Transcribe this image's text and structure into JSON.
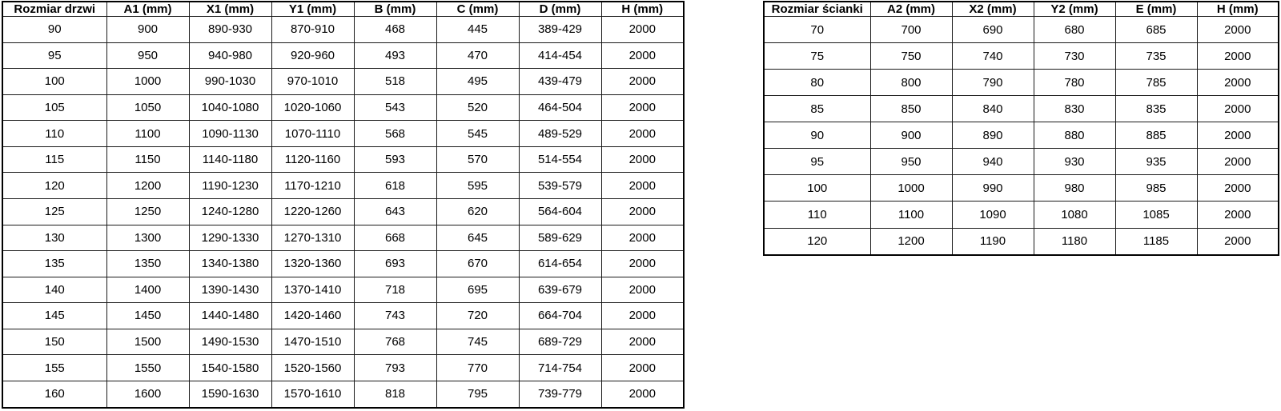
{
  "page": {
    "background": "#ffffff",
    "border_color": "#000000",
    "text_color": "#000000"
  },
  "door_table": {
    "headers": [
      "Rozmiar drzwi",
      "A1 (mm)",
      "X1 (mm)",
      "Y1 (mm)",
      "B (mm)",
      "C (mm)",
      "D (mm)",
      "H (mm)"
    ],
    "rows": [
      [
        "90",
        "900",
        "890-930",
        "870-910",
        "468",
        "445",
        "389-429",
        "2000"
      ],
      [
        "95",
        "950",
        "940-980",
        "920-960",
        "493",
        "470",
        "414-454",
        "2000"
      ],
      [
        "100",
        "1000",
        "990-1030",
        "970-1010",
        "518",
        "495",
        "439-479",
        "2000"
      ],
      [
        "105",
        "1050",
        "1040-1080",
        "1020-1060",
        "543",
        "520",
        "464-504",
        "2000"
      ],
      [
        "110",
        "1100",
        "1090-1130",
        "1070-1110",
        "568",
        "545",
        "489-529",
        "2000"
      ],
      [
        "115",
        "1150",
        "1140-1180",
        "1120-1160",
        "593",
        "570",
        "514-554",
        "2000"
      ],
      [
        "120",
        "1200",
        "1190-1230",
        "1170-1210",
        "618",
        "595",
        "539-579",
        "2000"
      ],
      [
        "125",
        "1250",
        "1240-1280",
        "1220-1260",
        "643",
        "620",
        "564-604",
        "2000"
      ],
      [
        "130",
        "1300",
        "1290-1330",
        "1270-1310",
        "668",
        "645",
        "589-629",
        "2000"
      ],
      [
        "135",
        "1350",
        "1340-1380",
        "1320-1360",
        "693",
        "670",
        "614-654",
        "2000"
      ],
      [
        "140",
        "1400",
        "1390-1430",
        "1370-1410",
        "718",
        "695",
        "639-679",
        "2000"
      ],
      [
        "145",
        "1450",
        "1440-1480",
        "1420-1460",
        "743",
        "720",
        "664-704",
        "2000"
      ],
      [
        "150",
        "1500",
        "1490-1530",
        "1470-1510",
        "768",
        "745",
        "689-729",
        "2000"
      ],
      [
        "155",
        "1550",
        "1540-1580",
        "1520-1560",
        "793",
        "770",
        "714-754",
        "2000"
      ],
      [
        "160",
        "1600",
        "1590-1630",
        "1570-1610",
        "818",
        "795",
        "739-779",
        "2000"
      ]
    ]
  },
  "wall_table": {
    "headers": [
      "Rozmiar ścianki",
      "A2 (mm)",
      "X2 (mm)",
      "Y2 (mm)",
      "E (mm)",
      "H (mm)"
    ],
    "rows": [
      [
        "70",
        "700",
        "690",
        "680",
        "685",
        "2000"
      ],
      [
        "75",
        "750",
        "740",
        "730",
        "735",
        "2000"
      ],
      [
        "80",
        "800",
        "790",
        "780",
        "785",
        "2000"
      ],
      [
        "85",
        "850",
        "840",
        "830",
        "835",
        "2000"
      ],
      [
        "90",
        "900",
        "890",
        "880",
        "885",
        "2000"
      ],
      [
        "95",
        "950",
        "940",
        "930",
        "935",
        "2000"
      ],
      [
        "100",
        "1000",
        "990",
        "980",
        "985",
        "2000"
      ],
      [
        "110",
        "1100",
        "1090",
        "1080",
        "1085",
        "2000"
      ],
      [
        "120",
        "1200",
        "1190",
        "1180",
        "1185",
        "2000"
      ]
    ]
  }
}
